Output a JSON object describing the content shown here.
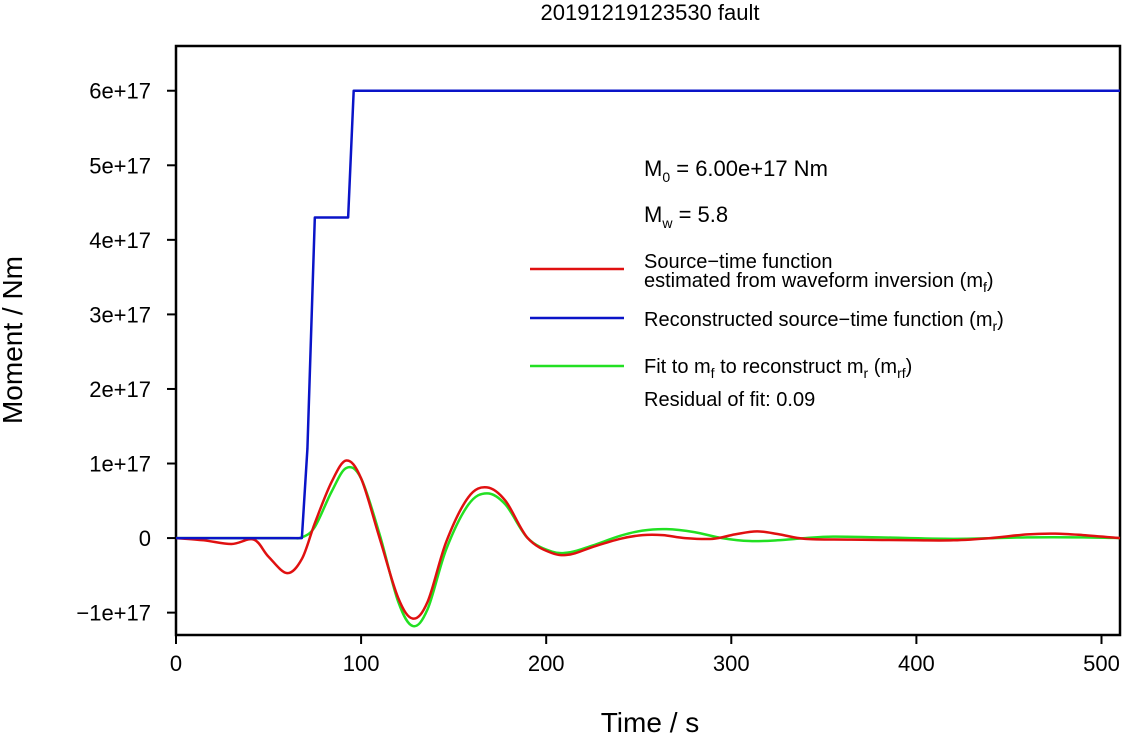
{
  "chart_data": {
    "type": "line",
    "title": "20191219123530 fault",
    "xlabel": "Time / s",
    "ylabel": "Moment / Nm",
    "xlim": [
      0,
      510
    ],
    "ylim": [
      -1.3e+17,
      6.6e+17
    ],
    "x_ticks": [
      0,
      100,
      200,
      300,
      400,
      500
    ],
    "x_tick_labels": [
      "0",
      "100",
      "200",
      "300",
      "400",
      "500"
    ],
    "y_ticks": [
      -1e+17,
      0,
      1e+17,
      2e+17,
      3e+17,
      4e+17,
      5e+17,
      6e+17
    ],
    "y_tick_labels": [
      "−1e+17",
      "0",
      "1e+17",
      "2e+17",
      "3e+17",
      "4e+17",
      "5e+17",
      "6e+17"
    ],
    "grid": false,
    "annotations": {
      "m0": {
        "base": "M",
        "sub": "0",
        "rest": " = 6.00e+17 Nm"
      },
      "mw": {
        "base": "M",
        "sub": "w",
        "rest": " = 5.8"
      },
      "residual": "Residual of fit: 0.09"
    },
    "legend": {
      "placement": "right",
      "entries": [
        {
          "line1": "Source−time function",
          "line2a": "estimated from waveform inversion (m",
          "line2sub": "f",
          "line2b": ")",
          "color": "#e01010"
        },
        {
          "line1a": "Reconstructed source−time function (m",
          "line1sub": "r",
          "line1b": ")",
          "color": "#0a14c8"
        },
        {
          "line1a": "Fit to m",
          "sub1": "f",
          "line1mid": " to reconstruct m",
          "sub2": "r",
          "line1mid2": " (m",
          "sub3": "rf",
          "line1b": ")",
          "color": "#22e022"
        }
      ]
    },
    "series": [
      {
        "color": "#0a14c8",
        "x": [
          0,
          68,
          71,
          75,
          93,
          96,
          510
        ],
        "y": [
          0,
          0,
          1.2e+17,
          4.3e+17,
          4.3e+17,
          6e+17,
          6e+17
        ]
      },
      {
        "color": "#e01010",
        "x": [
          0,
          15,
          30,
          42,
          50,
          60,
          68,
          75,
          84,
          92,
          100,
          110,
          120,
          128,
          136,
          146,
          158,
          168,
          178,
          190,
          203,
          213,
          225,
          240,
          252,
          263,
          275,
          290,
          302,
          314,
          326,
          340,
          365,
          400,
          420,
          440,
          460,
          475,
          490,
          510
        ],
        "y": [
          0,
          -3000000000000000.0,
          -8000000000000000.0,
          -2000000000000000.0,
          -2.5e+16,
          -4.7e+16,
          -2.8e+16,
          2e+16,
          7.5e+16,
          1.04e+17,
          8e+16,
          0.0,
          -8e+16,
          -1.08e+17,
          -8.5e+16,
          -5000000000000000.0,
          5.5e+16,
          6.8e+16,
          5e+16,
          0.0,
          -2e+16,
          -2.2e+16,
          -1.2e+16,
          -1000000000000000.0,
          4000000000000000.0,
          4000000000000000.0,
          0.0,
          -1000000000000000.0,
          5000000000000000.0,
          9000000000000000.0,
          5000000000000000.0,
          -1000000000000000.0,
          -2000000000000000.0,
          -3000000000000000.0,
          -3000000000000000.0,
          0.0,
          5000000000000000.0,
          6000000000000000.0,
          4000000000000000.0,
          0.0
        ]
      },
      {
        "color": "#22e022",
        "x": [
          0,
          30,
          60,
          68,
          75,
          84,
          92,
          100,
          110,
          120,
          128,
          136,
          146,
          158,
          168,
          178,
          190,
          203,
          213,
          225,
          240,
          252,
          265,
          280,
          295,
          310,
          325,
          340,
          355,
          380,
          420,
          460,
          490,
          510
        ],
        "y": [
          0,
          0,
          0,
          1000000000000000.0,
          1.5e+16,
          6.2e+16,
          9.4e+16,
          8e+16,
          5000000000000000.0,
          -8.5e+16,
          -1.18e+17,
          -9.5e+16,
          -1.5e+16,
          4.5e+16,
          6e+16,
          4.5e+16,
          0.0,
          -1.8e+16,
          -1.9e+16,
          -1e+16,
          3000000000000000.0,
          1e+16,
          1.2e+16,
          8000000000000000.0,
          0.0,
          -4000000000000000.0,
          -3000000000000000.0,
          0.0,
          2000000000000000.0,
          1000000000000000.0,
          -1000000000000000.0,
          1000000000000000.0,
          1000000000000000.0,
          0.0
        ]
      }
    ]
  }
}
